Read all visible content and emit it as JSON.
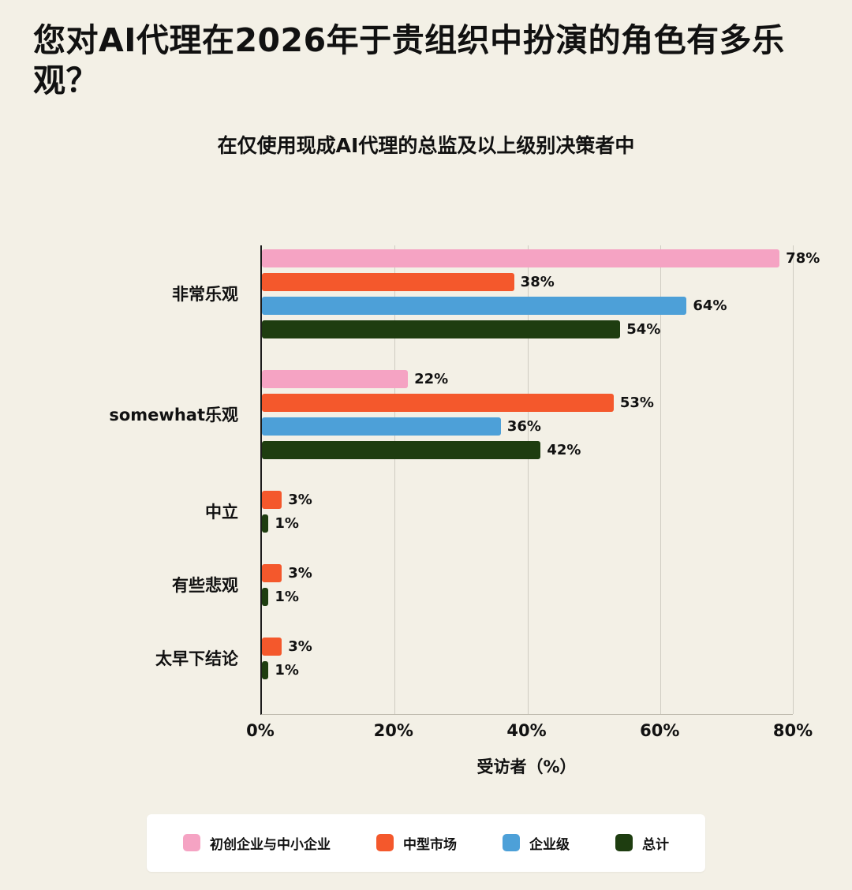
{
  "chart_data": {
    "type": "bar",
    "orientation": "horizontal",
    "title": "您对AI代理在2026年于贵组织中扮演的角色有多乐观？",
    "subtitle": "在仅使用现成AI代理的总监及以上级别决策者中",
    "xlabel": "受访者（%）",
    "xlim": [
      0,
      80
    ],
    "ticks": [
      0,
      20,
      40,
      60,
      80
    ],
    "tick_labels": [
      "0%",
      "20%",
      "40%",
      "60%",
      "80%"
    ],
    "value_suffix": "%",
    "grid": true,
    "legend_position": "bottom",
    "background_color": "#f3f0e6",
    "categories": [
      "非常乐观",
      "somewhat乐观",
      "中立",
      "有些悲观",
      "太早下结论"
    ],
    "series": [
      {
        "name": "初创企业与中小企业",
        "color": "#f5a3c3",
        "values": [
          78,
          22,
          null,
          null,
          null
        ]
      },
      {
        "name": "中型市场",
        "color": "#f4582c",
        "values": [
          38,
          53,
          3,
          3,
          3
        ]
      },
      {
        "name": "企业级",
        "color": "#4da0d8",
        "values": [
          64,
          36,
          null,
          null,
          null
        ]
      },
      {
        "name": "总计",
        "color": "#1e3d10",
        "values": [
          54,
          42,
          1,
          1,
          1
        ]
      }
    ]
  }
}
